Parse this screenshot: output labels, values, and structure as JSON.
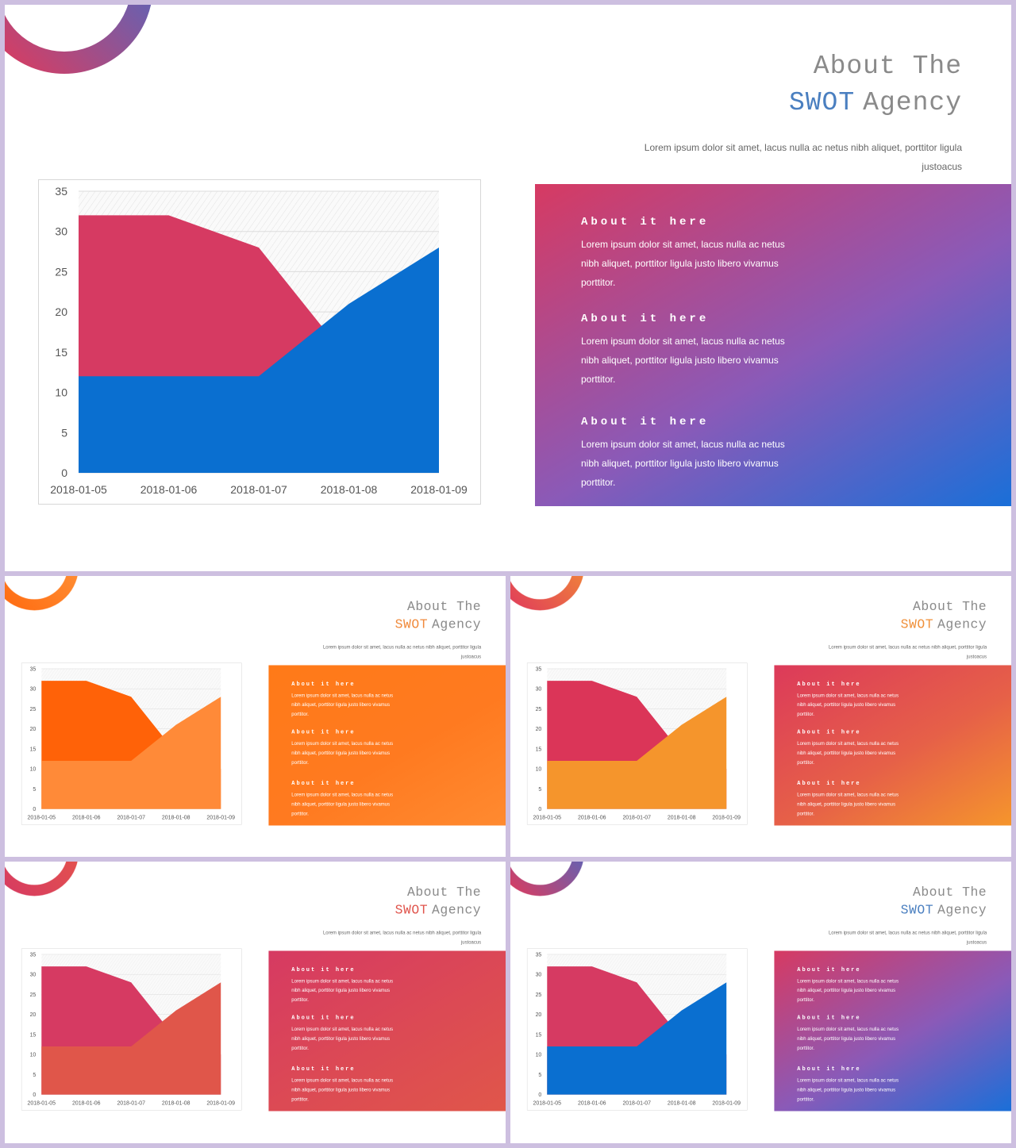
{
  "slides": [
    {
      "title_line1": "About The",
      "title_swot": "SWOT",
      "title_rest": "Agency",
      "subtitle": "Lorem ipsum dolor sit amet, lacus nulla ac netus nibh aliquet, porttitor ligula justoacus",
      "colors": {
        "swot": "#4a7fc0",
        "upper": "#d63a62",
        "lower": "#0a6fd0",
        "ring_a": "#e03a5c",
        "ring_b": "#3a6fd0",
        "panel_a": "#d63a62",
        "panel_b": "#8a5ab8",
        "panel_c": "#1a6fd8"
      },
      "panel": [
        {
          "title": "About it here",
          "body": "Lorem ipsum dolor sit amet, lacus nulla ac netus nibh aliquet, porttitor ligula justo libero vivamus porttitor."
        },
        {
          "title": "About it here",
          "body": "Lorem ipsum dolor sit amet, lacus nulla ac netus nibh aliquet, porttitor ligula justo libero vivamus porttitor."
        },
        {
          "title": "About it here",
          "body": "Lorem ipsum dolor sit amet, lacus nulla ac netus nibh aliquet, porttitor ligula justo libero vivamus porttitor."
        }
      ]
    },
    {
      "title_line1": "About The",
      "title_swot": "SWOT",
      "title_rest": "Agency",
      "subtitle": "Lorem ipsum dolor sit amet, lacus nulla ac netus nibh aliquet, porttitor ligula justoacus",
      "colors": {
        "swot": "#f08a3c",
        "upper": "#ff6208",
        "lower": "#ff8a38",
        "ring_a": "#ff6a10",
        "ring_b": "#ff9a40",
        "panel_a": "#ff7a18",
        "panel_b": "#ff7a20",
        "panel_c": "#ff8a30"
      },
      "panel": [
        {
          "title": "About it here",
          "body": "Lorem ipsum dolor sit amet, lacus nulla ac netus nibh aliquet, porttitor ligula justo libero vivamus porttitor."
        },
        {
          "title": "About it here",
          "body": "Lorem ipsum dolor sit amet, lacus nulla ac netus nibh aliquet, porttitor ligula justo libero vivamus porttitor."
        },
        {
          "title": "About it here",
          "body": "Lorem ipsum dolor sit amet, lacus nulla ac netus nibh aliquet, porttitor ligula justo libero vivamus porttitor."
        }
      ]
    },
    {
      "title_line1": "About The",
      "title_swot": "SWOT",
      "title_rest": "Agency",
      "subtitle": "Lorem ipsum dolor sit amet, lacus nulla ac netus nibh aliquet, porttitor ligula justoacus",
      "colors": {
        "swot": "#f0903a",
        "upper": "#db3558",
        "lower": "#f5952c",
        "ring_a": "#e03a5c",
        "ring_b": "#f59a30",
        "panel_a": "#dc3a5a",
        "panel_b": "#e66048",
        "panel_c": "#f5952c"
      },
      "panel": [
        {
          "title": "About it here",
          "body": "Lorem ipsum dolor sit amet, lacus nulla ac netus nibh aliquet, porttitor ligula justo libero vivamus porttitor."
        },
        {
          "title": "About it here",
          "body": "Lorem ipsum dolor sit amet, lacus nulla ac netus nibh aliquet, porttitor ligula justo libero vivamus porttitor."
        },
        {
          "title": "About it here",
          "body": "Lorem ipsum dolor sit amet, lacus nulla ac netus nibh aliquet, porttitor ligula justo libero vivamus porttitor."
        }
      ]
    },
    {
      "title_line1": "About The",
      "title_swot": "SWOT",
      "title_rest": "Agency",
      "subtitle": "Lorem ipsum dolor sit amet, lacus nulla ac netus nibh aliquet, porttitor ligula justoacus",
      "colors": {
        "swot": "#e0544c",
        "upper": "#d63a62",
        "lower": "#e0564a",
        "ring_a": "#d63a62",
        "ring_b": "#e85a48",
        "panel_a": "#d63a62",
        "panel_b": "#dc4a54",
        "panel_c": "#e0564a"
      },
      "panel": [
        {
          "title": "About it here",
          "body": "Lorem ipsum dolor sit amet, lacus nulla ac netus nibh aliquet, porttitor ligula justo libero vivamus porttitor."
        },
        {
          "title": "About it here",
          "body": "Lorem ipsum dolor sit amet, lacus nulla ac netus nibh aliquet, porttitor ligula justo libero vivamus porttitor."
        },
        {
          "title": "About it here",
          "body": "Lorem ipsum dolor sit amet, lacus nulla ac netus nibh aliquet, porttitor ligula justo libero vivamus porttitor."
        }
      ]
    },
    {
      "title_line1": "About The",
      "title_swot": "SWOT",
      "title_rest": "Agency",
      "subtitle": "Lorem ipsum dolor sit amet, lacus nulla ac netus nibh aliquet, porttitor ligula justoacus",
      "colors": {
        "swot": "#4a7fc0",
        "upper": "#d63a62",
        "lower": "#0a6fd0",
        "ring_a": "#e03a5c",
        "ring_b": "#3a6fd0",
        "panel_a": "#d63a62",
        "panel_b": "#8a5ab8",
        "panel_c": "#1a6fd8"
      },
      "panel": [
        {
          "title": "About it here",
          "body": "Lorem ipsum dolor sit amet, lacus nulla ac netus nibh aliquet, porttitor ligula justo libero vivamus porttitor."
        },
        {
          "title": "About it here",
          "body": "Lorem ipsum dolor sit amet, lacus nulla ac netus nibh aliquet, porttitor ligula justo libero vivamus porttitor."
        },
        {
          "title": "About it here",
          "body": "Lorem ipsum dolor sit amet, lacus nulla ac netus nibh aliquet, porttitor ligula justo libero vivamus porttitor."
        }
      ]
    }
  ],
  "chart_data": {
    "type": "area",
    "x": [
      "2018-01-05",
      "2018-01-06",
      "2018-01-07",
      "2018-01-08",
      "2018-01-09"
    ],
    "series": [
      {
        "values": [
          12,
          12,
          12,
          21,
          28
        ]
      },
      {
        "values": [
          32,
          32,
          28,
          14,
          10
        ]
      }
    ],
    "title": "",
    "xlabel": "",
    "ylabel": "",
    "ylim": [
      0,
      35
    ],
    "yticks": [
      0,
      5,
      10,
      15,
      20,
      25,
      30,
      35
    ],
    "stacked": false,
    "grid": true,
    "legend": "none"
  }
}
